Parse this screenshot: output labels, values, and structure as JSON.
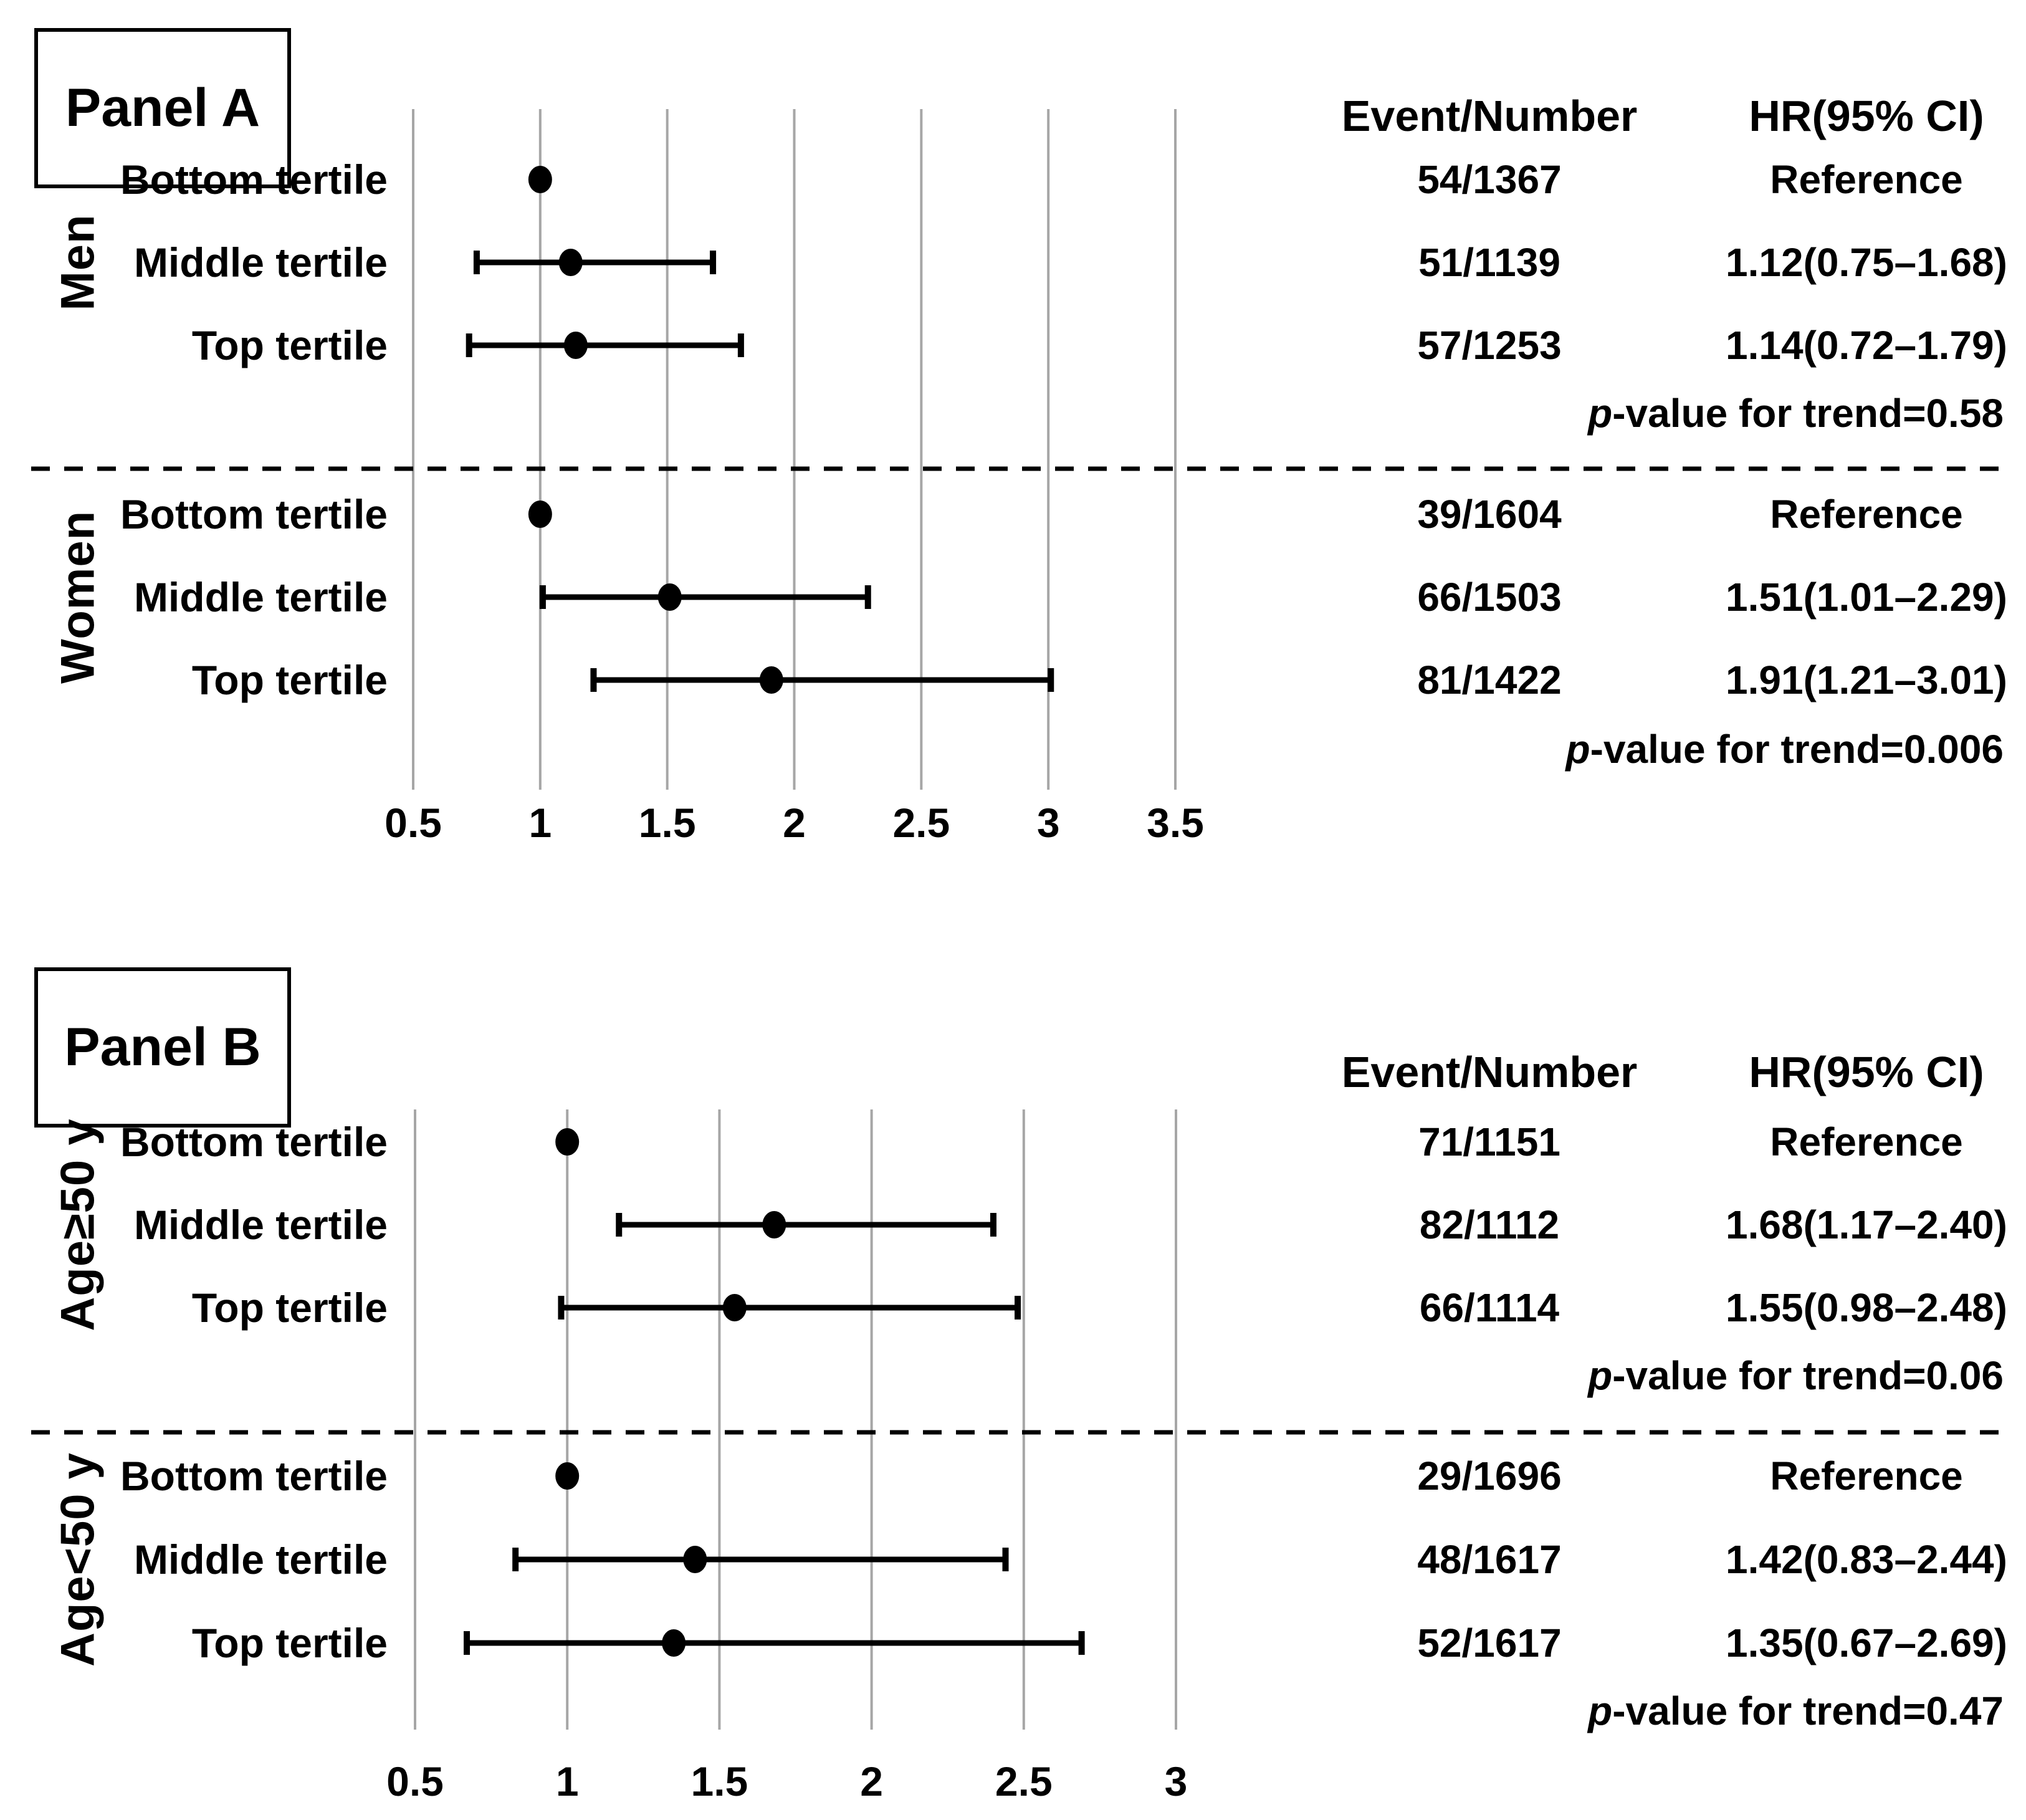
{
  "figure": {
    "background": "#ffffff",
    "text_color": "#000000",
    "grid_color": "#a6a6a6",
    "marker_color": "#000000"
  },
  "chart_data": [
    {
      "type": "scatter",
      "subtype": "forest-plot",
      "title": "Panel A",
      "columns": {
        "event_number": "Event/Number",
        "hr": "HR(95% CI)"
      },
      "axis": {
        "min": 0.5,
        "max": 3.5,
        "tick_values": [
          0.5,
          1,
          1.5,
          2,
          2.5,
          3,
          3.5
        ],
        "tick_labels": [
          "0.5",
          "1",
          "1.5",
          "2",
          "2.5",
          "3",
          "3.5"
        ],
        "grid": true
      },
      "groups": [
        {
          "name": "Men",
          "rows": [
            {
              "label": "Bottom tertile",
              "event_number": "54/1367",
              "hr_text": "Reference",
              "hr": 1.0,
              "lo": null,
              "hi": null,
              "reference": true
            },
            {
              "label": "Middle tertile",
              "event_number": "51/1139",
              "hr_text": "1.12(0.75–1.68)",
              "hr": 1.12,
              "lo": 0.75,
              "hi": 1.68,
              "reference": false
            },
            {
              "label": "Top tertile",
              "event_number": "57/1253",
              "hr_text": "1.14(0.72–1.79)",
              "hr": 1.14,
              "lo": 0.72,
              "hi": 1.79,
              "reference": false
            }
          ],
          "p_trend": {
            "italic": "p",
            "text": "-value for trend=0.58"
          }
        },
        {
          "name": "Women",
          "rows": [
            {
              "label": "Bottom tertile",
              "event_number": "39/1604",
              "hr_text": "Reference",
              "hr": 1.0,
              "lo": null,
              "hi": null,
              "reference": true
            },
            {
              "label": "Middle tertile",
              "event_number": "66/1503",
              "hr_text": "1.51(1.01–2.29)",
              "hr": 1.51,
              "lo": 1.01,
              "hi": 2.29,
              "reference": false
            },
            {
              "label": "Top tertile",
              "event_number": "81/1422",
              "hr_text": "1.91(1.21–3.01)",
              "hr": 1.91,
              "lo": 1.21,
              "hi": 3.01,
              "reference": false
            }
          ],
          "p_trend": {
            "italic": "p",
            "text": "-value for trend=0.006"
          }
        }
      ]
    },
    {
      "type": "scatter",
      "subtype": "forest-plot",
      "title": "Panel B",
      "columns": {
        "event_number": "Event/Number",
        "hr": "HR(95% CI)"
      },
      "axis": {
        "min": 0.5,
        "max": 3.0,
        "tick_values": [
          0.5,
          1,
          1.5,
          2,
          2.5,
          3
        ],
        "tick_labels": [
          "0.5",
          "1",
          "1.5",
          "2",
          "2.5",
          "3"
        ],
        "grid": true
      },
      "groups": [
        {
          "name": "Age≥50 y",
          "rows": [
            {
              "label": "Bottom tertile",
              "event_number": "71/1151",
              "hr_text": "Reference",
              "hr": 1.0,
              "lo": null,
              "hi": null,
              "reference": true
            },
            {
              "label": "Middle tertile",
              "event_number": "82/1112",
              "hr_text": "1.68(1.17–2.40)",
              "hr": 1.68,
              "lo": 1.17,
              "hi": 2.4,
              "reference": false
            },
            {
              "label": "Top tertile",
              "event_number": "66/1114",
              "hr_text": "1.55(0.98–2.48)",
              "hr": 1.55,
              "lo": 0.98,
              "hi": 2.48,
              "reference": false
            }
          ],
          "p_trend": {
            "italic": "p",
            "text": "-value for trend=0.06"
          }
        },
        {
          "name": "Age<50 y",
          "rows": [
            {
              "label": "Bottom tertile",
              "event_number": "29/1696",
              "hr_text": "Reference",
              "hr": 1.0,
              "lo": null,
              "hi": null,
              "reference": true
            },
            {
              "label": "Middle tertile",
              "event_number": "48/1617",
              "hr_text": "1.42(0.83–2.44)",
              "hr": 1.42,
              "lo": 0.83,
              "hi": 2.44,
              "reference": false
            },
            {
              "label": "Top tertile",
              "event_number": "52/1617",
              "hr_text": "1.35(0.67–2.69)",
              "hr": 1.35,
              "lo": 0.67,
              "hi": 2.69,
              "reference": false
            }
          ],
          "p_trend": {
            "italic": "p",
            "text": "-value for trend=0.47"
          }
        }
      ]
    }
  ]
}
